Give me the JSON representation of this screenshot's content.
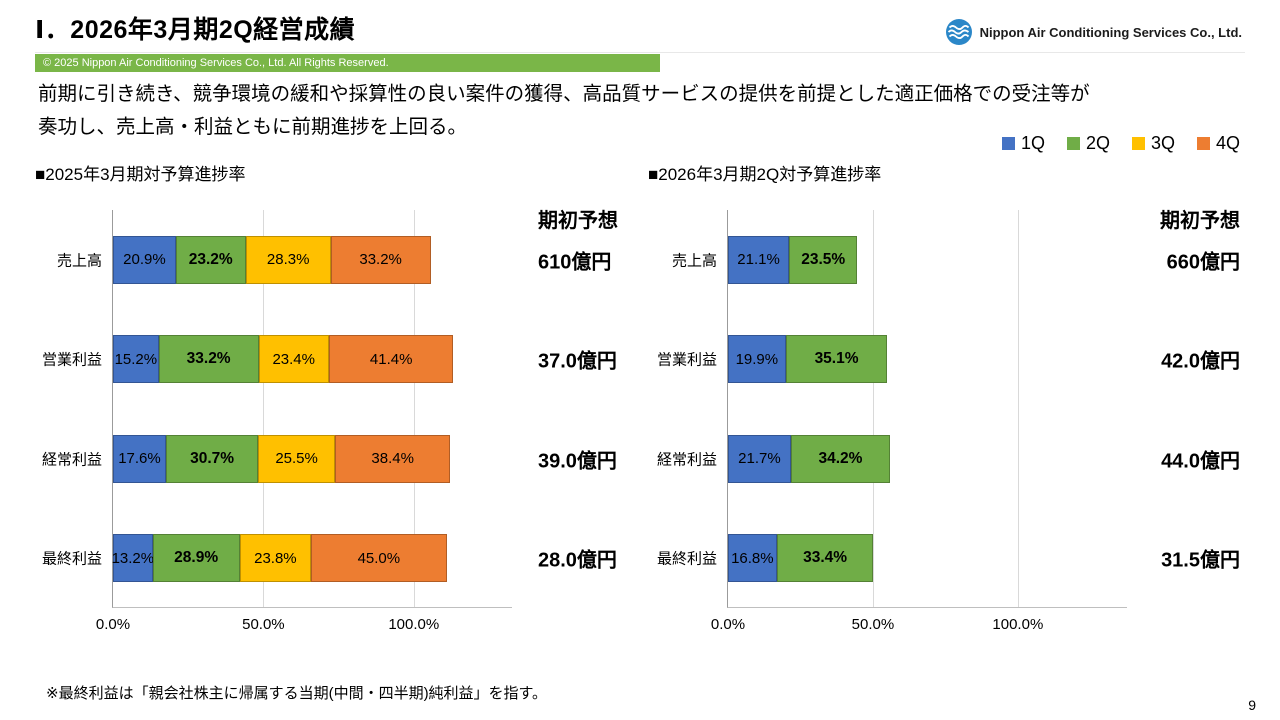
{
  "colors": {
    "q1_blue": "#4472C4",
    "q2_green": "#70AD47",
    "q3_yellow": "#FFC000",
    "q4_orange": "#ED7D31",
    "copyright_bar": "#7AB648",
    "logo_blue": "#2B87C8"
  },
  "header": {
    "title": "Ⅰ．2026年3月期2Q経営成績",
    "logo_text": "Nippon Air Conditioning Services Co., Ltd.",
    "copyright": "© 2025 Nippon Air Conditioning Services Co., Ltd. All Rights Reserved."
  },
  "summary": {
    "line1": "前期に引き続き、競争環境の緩和や採算性の良い案件の獲得、高品質サービスの提供を前提とした適正価格での受注等が",
    "line2": "奏功し、売上高・利益ともに前期進捗を上回る。"
  },
  "legend": {
    "items": [
      {
        "label": "1Q",
        "color": "#4472C4"
      },
      {
        "label": "2Q",
        "color": "#70AD47"
      },
      {
        "label": "3Q",
        "color": "#FFC000"
      },
      {
        "label": "4Q",
        "color": "#ED7D31"
      }
    ]
  },
  "chart_data": [
    {
      "type": "bar",
      "orientation": "horizontal",
      "stacked": true,
      "title": "■2025年3月期対予算進捗率",
      "forecast_header": "期初予想",
      "categories": [
        "売上高",
        "営業利益",
        "経常利益",
        "最終利益"
      ],
      "series": [
        {
          "name": "1Q",
          "color": "#4472C4",
          "bold_labels": false,
          "values": [
            20.9,
            15.2,
            17.6,
            13.2
          ]
        },
        {
          "name": "2Q",
          "color": "#70AD47",
          "bold_labels": true,
          "values": [
            23.2,
            33.2,
            30.7,
            28.9
          ]
        },
        {
          "name": "3Q",
          "color": "#FFC000",
          "bold_labels": false,
          "values": [
            28.3,
            23.4,
            25.5,
            23.8
          ]
        },
        {
          "name": "4Q",
          "color": "#ED7D31",
          "bold_labels": false,
          "values": [
            33.2,
            41.4,
            38.4,
            45.0
          ]
        }
      ],
      "forecasts": [
        "610億円",
        "37.0億円",
        "39.0億円",
        "28.0億円"
      ],
      "unit": "%",
      "x_axis": {
        "max": 133,
        "ticks": [
          {
            "value": 0,
            "label": "0.0%"
          },
          {
            "value": 50,
            "label": "50.0%"
          },
          {
            "value": 100,
            "label": "100.0%"
          }
        ]
      }
    },
    {
      "type": "bar",
      "orientation": "horizontal",
      "stacked": true,
      "title": "■2026年3月期2Q対予算進捗率",
      "forecast_header": "期初予想",
      "categories": [
        "売上高",
        "営業利益",
        "経常利益",
        "最終利益"
      ],
      "series": [
        {
          "name": "1Q",
          "color": "#4472C4",
          "bold_labels": false,
          "values": [
            21.1,
            19.9,
            21.7,
            16.8
          ]
        },
        {
          "name": "2Q",
          "color": "#70AD47",
          "bold_labels": true,
          "values": [
            23.5,
            35.1,
            34.2,
            33.4
          ]
        }
      ],
      "forecasts": [
        "660億円",
        "42.0億円",
        "44.0億円",
        "31.5億円"
      ],
      "unit": "%",
      "x_axis": {
        "max": 138,
        "ticks": [
          {
            "value": 0,
            "label": "0.0%"
          },
          {
            "value": 50,
            "label": "50.0%"
          },
          {
            "value": 100,
            "label": "100.0%"
          }
        ]
      }
    }
  ],
  "footer": {
    "note": "※最終利益は「親会社株主に帰属する当期(中間・四半期)純利益」を指す。",
    "page_number": "9"
  }
}
